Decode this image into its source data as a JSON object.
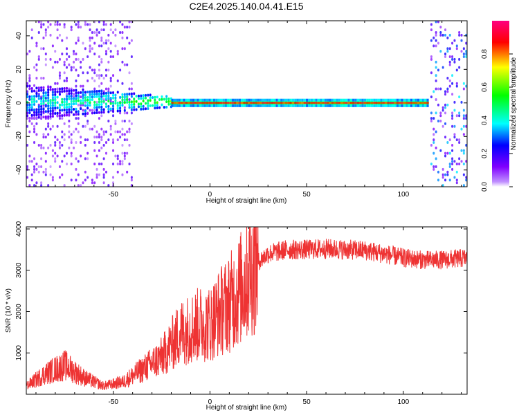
{
  "title": "C2E4.2025.140.04.41.E15",
  "chart_data": [
    {
      "type": "heatmap",
      "xlabel": "Height of straight line (km)",
      "ylabel": "Frequency (Hz)",
      "xlim": [
        -95,
        133
      ],
      "ylim": [
        -50,
        49
      ],
      "xticks": [
        -50,
        0,
        50,
        100
      ],
      "yticks": [
        -40,
        -20,
        0,
        20,
        40
      ],
      "grid": false,
      "colorbar": {
        "label": "Normalized spectral amplitude",
        "range": [
          0,
          1
        ],
        "ticks": [
          0.0,
          0.2,
          0.4,
          0.6,
          0.8
        ],
        "tick_labels": [
          "0.0",
          "0.2",
          "0.4",
          "0.6",
          "0.8"
        ],
        "colors": [
          "#ffffff",
          "#8000ff",
          "#0000ff",
          "#00ffff",
          "#00ff00",
          "#ffff00",
          "#ff0000",
          "#ff0080"
        ]
      },
      "features": [
        {
          "kind": "scattered_noise",
          "x_range": [
            -95,
            -40
          ],
          "freq_range": [
            -50,
            49
          ],
          "amplitude": 0.1
        },
        {
          "kind": "broad_band",
          "x_range": [
            -95,
            -20
          ],
          "freq_halfwidth": [
            10,
            3
          ],
          "amplitude": 0.25
        },
        {
          "kind": "narrow_line",
          "x_range": [
            -20,
            113
          ],
          "freq": 0,
          "freq_halfwidth": 1,
          "amplitude": 0.95
        },
        {
          "kind": "scattered_noise",
          "x_range": [
            114,
            133
          ],
          "freq_range": [
            -50,
            49
          ],
          "amplitude": 0.2
        }
      ]
    },
    {
      "type": "line",
      "xlabel": "Height of straight line (km)",
      "ylabel": "SNR (10 * v/v)",
      "xlim": [
        -95,
        133
      ],
      "ylim": [
        0,
        4050
      ],
      "xticks": [
        -50,
        0,
        50,
        100
      ],
      "yticks": [
        1000,
        2000,
        3000,
        4000
      ],
      "grid": false,
      "series": [
        {
          "color": "#ee3333",
          "x": [
            -95,
            -85,
            -75,
            -65,
            -55,
            -45,
            -35,
            -25,
            -20,
            -15,
            -10,
            -5,
            0,
            5,
            10,
            15,
            20,
            25,
            30,
            40,
            50,
            60,
            70,
            80,
            90,
            100,
            110,
            120,
            133
          ],
          "y": [
            200,
            500,
            700,
            400,
            200,
            300,
            600,
            900,
            1200,
            1500,
            1600,
            1700,
            1700,
            2000,
            2200,
            2500,
            2900,
            3200,
            3400,
            3500,
            3500,
            3520,
            3500,
            3480,
            3400,
            3300,
            3250,
            3250,
            3300
          ]
        }
      ]
    }
  ]
}
